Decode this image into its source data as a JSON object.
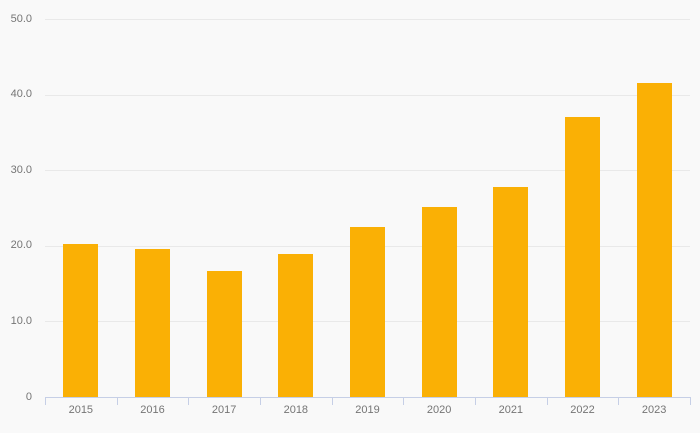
{
  "colors": {
    "background": "#f9f9f9",
    "bar": "#fab005",
    "grid": "#e9e9e9",
    "axis": "#c6cfe6",
    "label_text": "#757575"
  },
  "chart_data": {
    "type": "bar",
    "title": "",
    "xlabel": "",
    "ylabel": "",
    "categories": [
      "2015",
      "2016",
      "2017",
      "2018",
      "2019",
      "2020",
      "2021",
      "2022",
      "2023"
    ],
    "values": [
      20.2,
      19.6,
      16.7,
      18.9,
      22.5,
      25.1,
      27.8,
      37.0,
      41.5
    ],
    "series_color": "#fab005",
    "ylim": [
      0,
      50
    ],
    "yticks": [
      0,
      10,
      20,
      30,
      40,
      50
    ],
    "ytick_labels": [
      "0",
      "10.0",
      "20.0",
      "30.0",
      "40.0",
      "50.0"
    ],
    "grid": true,
    "legend": false
  }
}
